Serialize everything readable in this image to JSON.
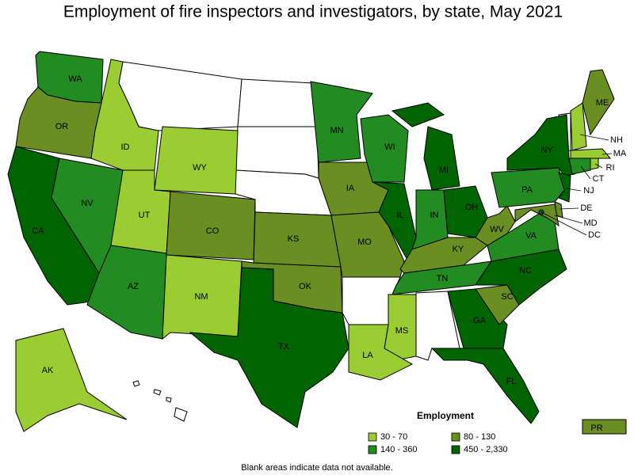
{
  "title": "Employment of fire inspectors and investigators, by state, May 2021",
  "footnote": "Blank areas indicate data not available.",
  "legend": {
    "title": "Employment",
    "classes": [
      {
        "label": "30 - 70",
        "color": "#9acd32"
      },
      {
        "label": "80 - 130",
        "color": "#6b8e23"
      },
      {
        "label": "140 - 360",
        "color": "#228b22"
      },
      {
        "label": "450 - 2,330",
        "color": "#006400"
      }
    ]
  },
  "states": [
    {
      "label": "WA",
      "class": 2
    },
    {
      "label": "OR",
      "class": 1
    },
    {
      "label": "CA",
      "class": 3
    },
    {
      "label": "NV",
      "class": 2
    },
    {
      "label": "ID",
      "class": 0
    },
    {
      "label": "UT",
      "class": 0
    },
    {
      "label": "AZ",
      "class": 2
    },
    {
      "label": "WY",
      "class": 0
    },
    {
      "label": "CO",
      "class": 1
    },
    {
      "label": "NM",
      "class": 0
    },
    {
      "label": "TX",
      "class": 3
    },
    {
      "label": "OK",
      "class": 1
    },
    {
      "label": "KS",
      "class": 1
    },
    {
      "label": "MN",
      "class": 2
    },
    {
      "label": "IA",
      "class": 1
    },
    {
      "label": "MO",
      "class": 1
    },
    {
      "label": "WI",
      "class": 2
    },
    {
      "label": "IL",
      "class": 3
    },
    {
      "label": "MI",
      "class": 3
    },
    {
      "label": "IN",
      "class": 2
    },
    {
      "label": "OH",
      "class": 3
    },
    {
      "label": "KY",
      "class": 1
    },
    {
      "label": "TN",
      "class": 2
    },
    {
      "label": "MS",
      "class": 0
    },
    {
      "label": "LA",
      "class": 0
    },
    {
      "label": "GA",
      "class": 3
    },
    {
      "label": "FL",
      "class": 3
    },
    {
      "label": "SC",
      "class": 1
    },
    {
      "label": "NC",
      "class": 3
    },
    {
      "label": "VA",
      "class": 2
    },
    {
      "label": "WV",
      "class": 1
    },
    {
      "label": "PA",
      "class": 2
    },
    {
      "label": "NY",
      "class": 3
    },
    {
      "label": "ME",
      "class": 1
    },
    {
      "label": "NH",
      "class": 0
    },
    {
      "label": "MA",
      "class": 0
    },
    {
      "label": "RI",
      "class": 0
    },
    {
      "label": "CT",
      "class": 2
    },
    {
      "label": "NJ",
      "class": 3
    },
    {
      "label": "DE",
      "class": 1
    },
    {
      "label": "MD",
      "class": 1
    },
    {
      "label": "DC",
      "class": 3
    },
    {
      "label": "AK",
      "class": 0
    },
    {
      "label": "PR",
      "class": 1
    }
  ]
}
